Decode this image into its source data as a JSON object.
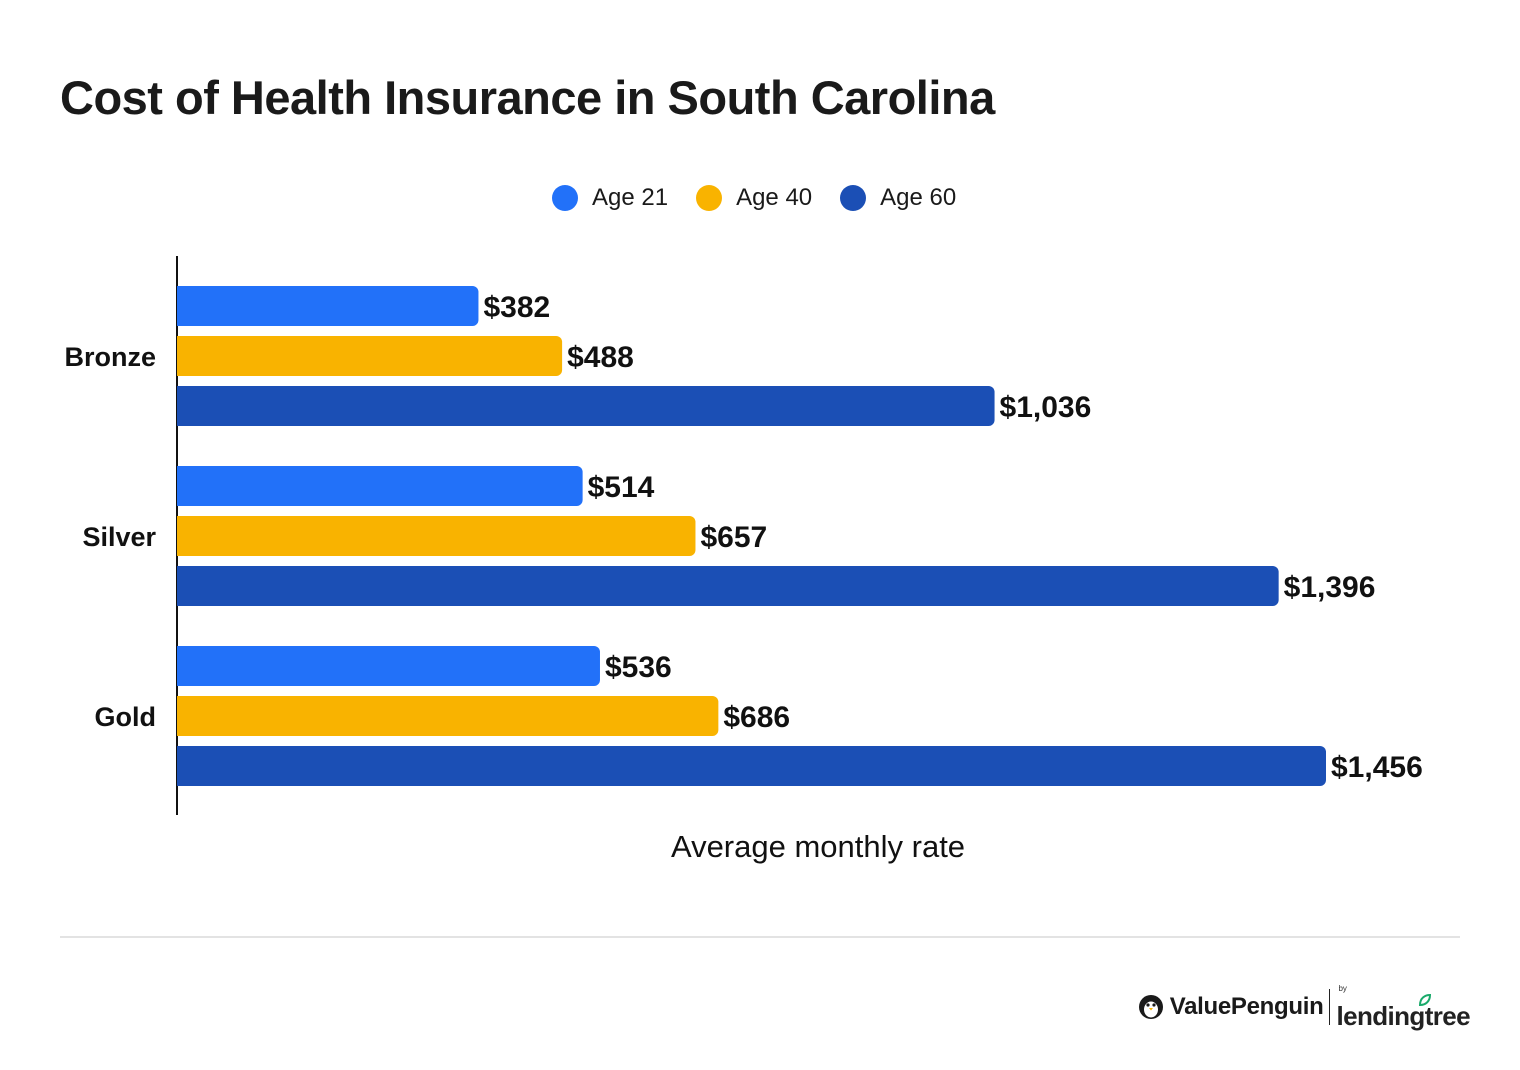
{
  "chart_data": {
    "type": "bar",
    "orientation": "horizontal",
    "title": "Cost of Health Insurance in South Carolina",
    "xlabel": "Average monthly rate",
    "ylabel": "",
    "categories": [
      "Bronze",
      "Silver",
      "Gold"
    ],
    "series": [
      {
        "name": "Age 21",
        "color": "#2271f9",
        "values": [
          382,
          514,
          536
        ],
        "labels": [
          "$382",
          "$514",
          "$536"
        ]
      },
      {
        "name": "Age 40",
        "color": "#f9b300",
        "values": [
          488,
          657,
          686
        ],
        "labels": [
          "$488",
          "$657",
          "$686"
        ]
      },
      {
        "name": "Age 60",
        "color": "#1b4fb5",
        "values": [
          1036,
          1396,
          1456
        ],
        "labels": [
          "$1,036",
          "$1,396",
          "$1,456"
        ]
      }
    ],
    "xlim": [
      0,
      1600
    ],
    "grid": false,
    "legend_position": "top-center"
  },
  "footer": {
    "brand": "ValuePenguin",
    "partner_prefix": "by",
    "partner": "lendingtree"
  }
}
